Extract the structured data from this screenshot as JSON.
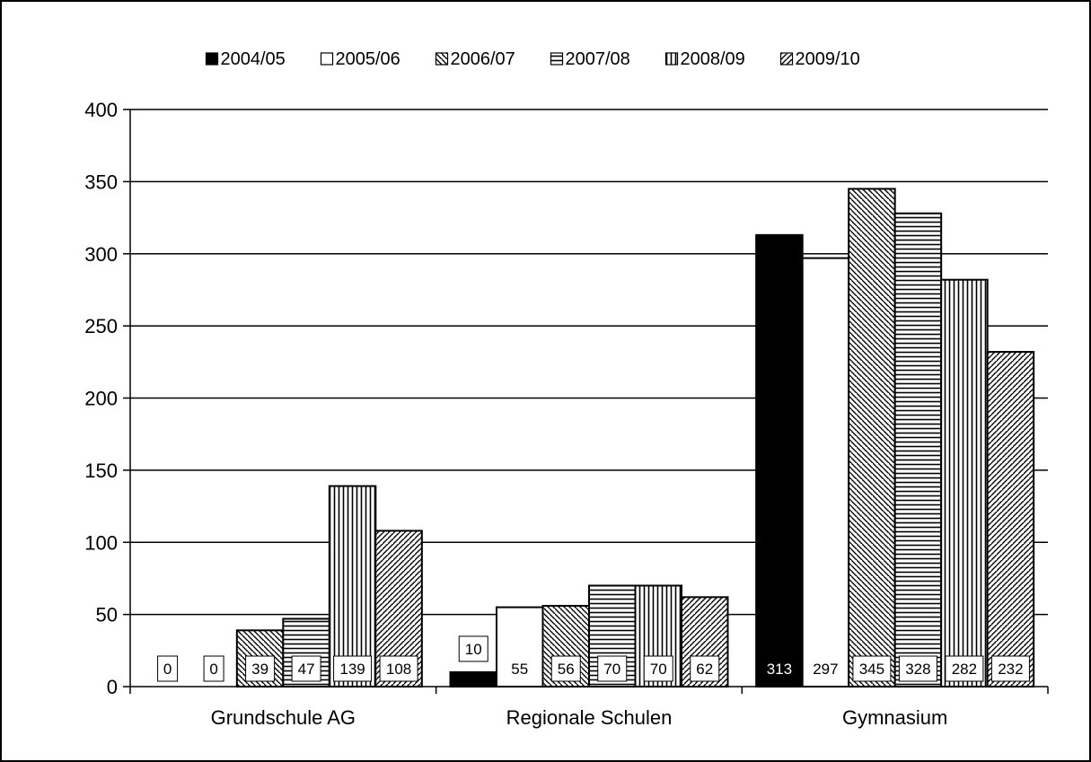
{
  "chart_data": {
    "type": "bar",
    "title": "",
    "xlabel": "",
    "ylabel": "",
    "ylim": [
      0,
      400
    ],
    "yticks": [
      0,
      50,
      100,
      150,
      200,
      250,
      300,
      350,
      400
    ],
    "grid": "horizontal",
    "legend_position": "top",
    "categories": [
      "Grundschule AG",
      "Regionale Schulen",
      "Gymnasium"
    ],
    "series": [
      {
        "name": "2004/05",
        "values": [
          0,
          10,
          313
        ],
        "pattern": "solid-black"
      },
      {
        "name": "2005/06",
        "values": [
          0,
          55,
          297
        ],
        "pattern": "white"
      },
      {
        "name": "2006/07",
        "values": [
          39,
          56,
          345
        ],
        "pattern": "diagonal-down"
      },
      {
        "name": "2007/08",
        "values": [
          47,
          70,
          328
        ],
        "pattern": "horizontal-lines"
      },
      {
        "name": "2008/09",
        "values": [
          139,
          70,
          282
        ],
        "pattern": "vertical-lines"
      },
      {
        "name": "2009/10",
        "values": [
          108,
          62,
          232
        ],
        "pattern": "diagonal-up"
      }
    ]
  }
}
